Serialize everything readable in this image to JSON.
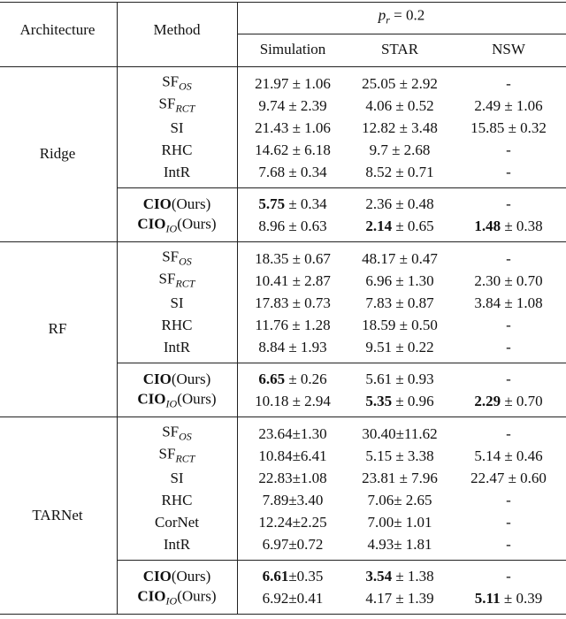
{
  "table": {
    "header": {
      "architecture": "Architecture",
      "method": "Method",
      "group": [
        {
          "text": "p",
          "style": "italic"
        },
        {
          "text": "r",
          "style": "sub"
        },
        {
          "text": " = 0.2"
        }
      ],
      "columns": [
        "Simulation",
        "STAR",
        "NSW"
      ]
    },
    "sections": [
      {
        "architecture": "Ridge",
        "blocks": [
          [
            {
              "method": [
                {
                  "text": "SF"
                },
                {
                  "text": "OS",
                  "style": "sub"
                }
              ],
              "cells": [
                "21.97 ± 1.06",
                "25.05 ± 2.92",
                "-"
              ]
            },
            {
              "method": [
                {
                  "text": "SF"
                },
                {
                  "text": "RCT",
                  "style": "sub"
                }
              ],
              "cells": [
                "9.74 ± 2.39",
                "4.06 ± 0.52",
                "2.49 ± 1.06"
              ]
            },
            {
              "method": "SI",
              "cells": [
                "21.43 ± 1.06",
                "12.82 ± 3.48",
                "15.85 ± 0.32"
              ]
            },
            {
              "method": "RHC",
              "cells": [
                "14.62 ± 6.18",
                "9.7 ± 2.68",
                "-"
              ]
            },
            {
              "method": "IntR",
              "cells": [
                "7.68 ± 0.34",
                "8.52 ± 0.71",
                "-"
              ]
            }
          ],
          [
            {
              "method": [
                {
                  "text": "CIO",
                  "style": "bold"
                },
                {
                  "text": "(Ours)"
                }
              ],
              "cells": [
                [
                  {
                    "text": "5.75",
                    "style": "bold"
                  },
                  {
                    "text": " ± 0.34"
                  }
                ],
                "2.36 ± 0.48",
                "-"
              ]
            },
            {
              "method": [
                {
                  "text": "CIO",
                  "style": "bold"
                },
                {
                  "text": "IO",
                  "style": "sub"
                },
                {
                  "text": "(Ours)"
                }
              ],
              "cells": [
                "8.96 ± 0.63",
                [
                  {
                    "text": "2.14",
                    "style": "bold"
                  },
                  {
                    "text": " ± 0.65"
                  }
                ],
                [
                  {
                    "text": "1.48",
                    "style": "bold"
                  },
                  {
                    "text": " ± 0.38"
                  }
                ]
              ]
            }
          ]
        ]
      },
      {
        "architecture": "RF",
        "blocks": [
          [
            {
              "method": [
                {
                  "text": "SF"
                },
                {
                  "text": "OS",
                  "style": "sub"
                }
              ],
              "cells": [
                "18.35 ± 0.67",
                "48.17 ± 0.47",
                "-"
              ]
            },
            {
              "method": [
                {
                  "text": "SF"
                },
                {
                  "text": "RCT",
                  "style": "sub"
                }
              ],
              "cells": [
                "10.41 ± 2.87",
                "6.96 ± 1.30",
                "2.30 ± 0.70"
              ]
            },
            {
              "method": "SI",
              "cells": [
                "17.83 ± 0.73",
                "7.83 ± 0.87",
                "3.84 ± 1.08"
              ]
            },
            {
              "method": "RHC",
              "cells": [
                "11.76 ± 1.28",
                "18.59 ± 0.50",
                "-"
              ]
            },
            {
              "method": "IntR",
              "cells": [
                "8.84 ± 1.93",
                "9.51 ± 0.22",
                "-"
              ]
            }
          ],
          [
            {
              "method": [
                {
                  "text": "CIO",
                  "style": "bold"
                },
                {
                  "text": "(Ours)"
                }
              ],
              "cells": [
                [
                  {
                    "text": "6.65",
                    "style": "bold"
                  },
                  {
                    "text": " ± 0.26"
                  }
                ],
                "5.61 ± 0.93",
                "-"
              ]
            },
            {
              "method": [
                {
                  "text": "CIO",
                  "style": "bold"
                },
                {
                  "text": "IO",
                  "style": "sub"
                },
                {
                  "text": "(Ours)"
                }
              ],
              "cells": [
                "10.18 ± 2.94",
                [
                  {
                    "text": "5.35",
                    "style": "bold"
                  },
                  {
                    "text": " ± 0.96"
                  }
                ],
                [
                  {
                    "text": "2.29",
                    "style": "bold"
                  },
                  {
                    "text": " ± 0.70"
                  }
                ]
              ]
            }
          ]
        ]
      },
      {
        "architecture": "TARNet",
        "blocks": [
          [
            {
              "method": [
                {
                  "text": "SF"
                },
                {
                  "text": "OS",
                  "style": "sub"
                }
              ],
              "cells": [
                "23.64±1.30",
                "30.40±11.62",
                "-"
              ]
            },
            {
              "method": [
                {
                  "text": "SF"
                },
                {
                  "text": "RCT",
                  "style": "sub"
                }
              ],
              "cells": [
                "10.84±6.41",
                "5.15 ± 3.38",
                "5.14 ± 0.46"
              ]
            },
            {
              "method": "SI",
              "cells": [
                "22.83±1.08",
                "23.81 ± 7.96",
                "22.47 ± 0.60"
              ]
            },
            {
              "method": "RHC",
              "cells": [
                "7.89±3.40",
                "7.06± 2.65",
                "-"
              ]
            },
            {
              "method": "CorNet",
              "cells": [
                "12.24±2.25",
                "7.00± 1.01",
                "-"
              ]
            },
            {
              "method": "IntR",
              "cells": [
                "6.97±0.72",
                "4.93± 1.81",
                "-"
              ]
            }
          ],
          [
            {
              "method": [
                {
                  "text": "CIO",
                  "style": "bold"
                },
                {
                  "text": "(Ours)"
                }
              ],
              "cells": [
                [
                  {
                    "text": "6.61",
                    "style": "bold"
                  },
                  {
                    "text": "±0.35"
                  }
                ],
                [
                  {
                    "text": "3.54",
                    "style": "bold"
                  },
                  {
                    "text": " ± 1.38"
                  }
                ],
                "-"
              ]
            },
            {
              "method": [
                {
                  "text": "CIO",
                  "style": "bold"
                },
                {
                  "text": "IO",
                  "style": "sub"
                },
                {
                  "text": "(Ours)"
                }
              ],
              "cells": [
                "6.92±0.41",
                "4.17 ± 1.39",
                [
                  {
                    "text": "5.11",
                    "style": "bold"
                  },
                  {
                    "text": " ± 0.39"
                  }
                ]
              ]
            }
          ]
        ]
      }
    ]
  }
}
